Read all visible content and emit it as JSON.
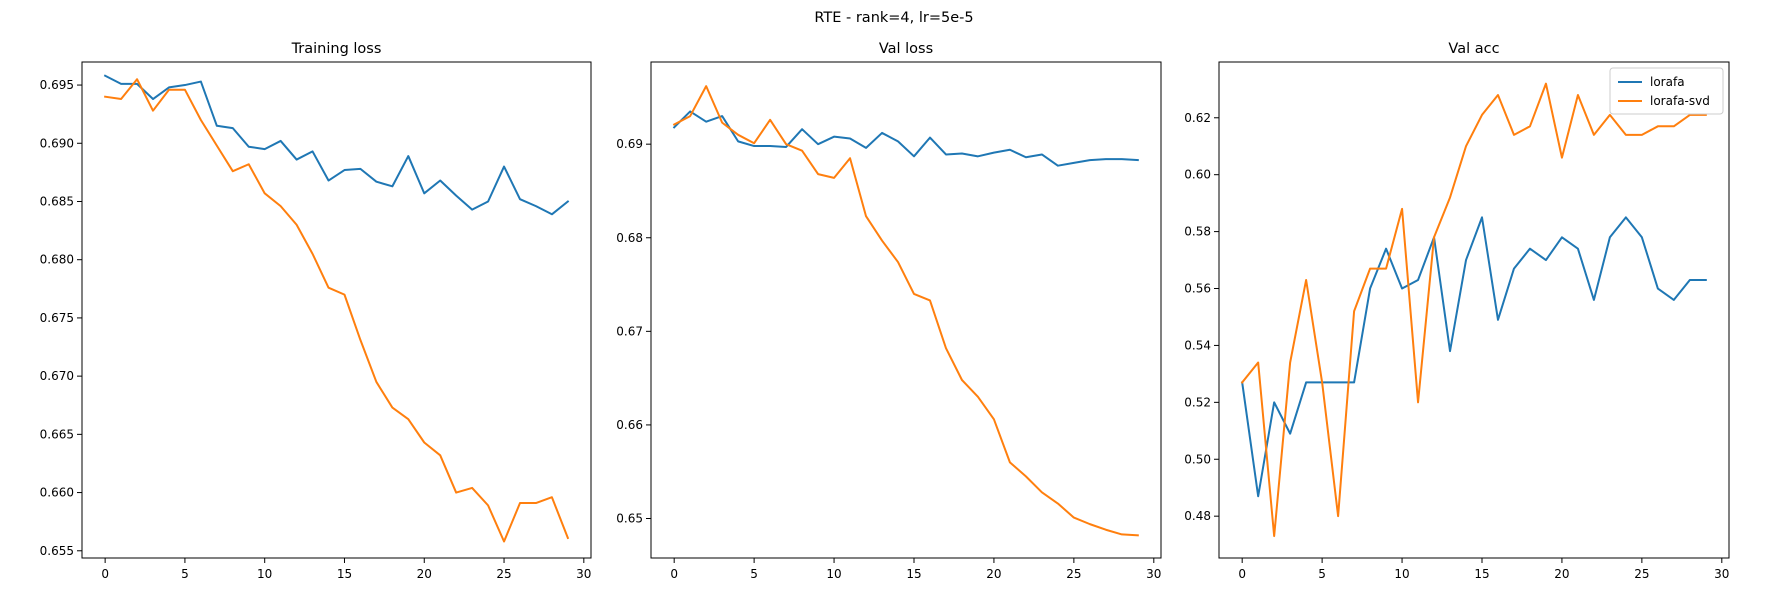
{
  "suptitle": "RTE - rank=4, lr=5e-5",
  "colors": {
    "lorafa": "#1f77b4",
    "lorafa-svd": "#ff7f0e"
  },
  "chart_data": [
    {
      "type": "line",
      "title": "Training loss",
      "xlabel": "",
      "ylabel": "",
      "xlim": [
        -1.45,
        30.45
      ],
      "ylim": [
        0.65438,
        0.69698
      ],
      "xticks": [
        0,
        5,
        10,
        15,
        20,
        25,
        30
      ],
      "xtick_labels": [
        "0",
        "5",
        "10",
        "15",
        "20",
        "25",
        "30"
      ],
      "yticks": [
        0.655,
        0.66,
        0.665,
        0.67,
        0.675,
        0.68,
        0.685,
        0.69,
        0.695
      ],
      "ytick_labels": [
        "0.655",
        "0.660",
        "0.665",
        "0.670",
        "0.675",
        "0.680",
        "0.685",
        "0.690",
        "0.695"
      ],
      "grid": false,
      "legend": null,
      "x": [
        0,
        1,
        2,
        3,
        4,
        5,
        6,
        7,
        8,
        9,
        10,
        11,
        12,
        13,
        14,
        15,
        16,
        17,
        18,
        19,
        20,
        21,
        22,
        23,
        24,
        25,
        26,
        27,
        28,
        29
      ],
      "series": [
        {
          "name": "lorafa",
          "values": [
            0.6958,
            0.6951,
            0.6951,
            0.6938,
            0.6948,
            0.695,
            0.6953,
            0.6915,
            0.6913,
            0.6897,
            0.6895,
            0.6902,
            0.6886,
            0.6893,
            0.6868,
            0.6877,
            0.6878,
            0.6867,
            0.6863,
            0.6889,
            0.6857,
            0.6868,
            0.6855,
            0.6843,
            0.685,
            0.688,
            0.6852,
            0.6846,
            0.6839,
            0.685
          ]
        },
        {
          "name": "lorafa-svd",
          "values": [
            0.694,
            0.6938,
            0.6955,
            0.6928,
            0.6946,
            0.6946,
            0.692,
            0.6898,
            0.6876,
            0.6882,
            0.6857,
            0.6846,
            0.683,
            0.6805,
            0.6776,
            0.677,
            0.6731,
            0.6695,
            0.6673,
            0.6663,
            0.6643,
            0.6632,
            0.66,
            0.6604,
            0.6589,
            0.6558,
            0.6591,
            0.6591,
            0.6596,
            0.6561
          ]
        }
      ]
    },
    {
      "type": "line",
      "title": "Val loss",
      "xlabel": "",
      "ylabel": "",
      "xlim": [
        -1.45,
        30.45
      ],
      "ylim": [
        0.64578,
        0.69878
      ],
      "xticks": [
        0,
        5,
        10,
        15,
        20,
        25,
        30
      ],
      "xtick_labels": [
        "0",
        "5",
        "10",
        "15",
        "20",
        "25",
        "30"
      ],
      "yticks": [
        0.65,
        0.66,
        0.67,
        0.68,
        0.69
      ],
      "ytick_labels": [
        "0.65",
        "0.66",
        "0.67",
        "0.68",
        "0.69"
      ],
      "grid": false,
      "legend": null,
      "x": [
        0,
        1,
        2,
        3,
        4,
        5,
        6,
        7,
        8,
        9,
        10,
        11,
        12,
        13,
        14,
        15,
        16,
        17,
        18,
        19,
        20,
        21,
        22,
        23,
        24,
        25,
        26,
        27,
        28,
        29
      ],
      "series": [
        {
          "name": "lorafa",
          "values": [
            0.6918,
            0.6935,
            0.6924,
            0.693,
            0.6903,
            0.6898,
            0.6898,
            0.6897,
            0.6916,
            0.69,
            0.6908,
            0.6906,
            0.6896,
            0.6912,
            0.6903,
            0.6887,
            0.6907,
            0.6889,
            0.689,
            0.6887,
            0.6891,
            0.6894,
            0.6886,
            0.6889,
            0.6877,
            0.688,
            0.6883,
            0.6884,
            0.6884,
            0.6883
          ]
        },
        {
          "name": "lorafa-svd",
          "values": [
            0.6921,
            0.693,
            0.6962,
            0.6923,
            0.691,
            0.6901,
            0.6926,
            0.69,
            0.6893,
            0.6868,
            0.6864,
            0.6885,
            0.6823,
            0.6797,
            0.6774,
            0.674,
            0.6733,
            0.6682,
            0.6648,
            0.663,
            0.6606,
            0.656,
            0.6545,
            0.6528,
            0.6516,
            0.6501,
            0.6494,
            0.6488,
            0.6483,
            0.6482
          ]
        }
      ]
    },
    {
      "type": "line",
      "title": "Val acc",
      "xlabel": "",
      "ylabel": "",
      "xlim": [
        -1.45,
        30.45
      ],
      "ylim": [
        0.4653,
        0.6396
      ],
      "xticks": [
        0,
        5,
        10,
        15,
        20,
        25,
        30
      ],
      "xtick_labels": [
        "0",
        "5",
        "10",
        "15",
        "20",
        "25",
        "30"
      ],
      "yticks": [
        0.48,
        0.5,
        0.52,
        0.54,
        0.56,
        0.58,
        0.6,
        0.62
      ],
      "ytick_labels": [
        "0.48",
        "0.50",
        "0.52",
        "0.54",
        "0.56",
        "0.58",
        "0.60",
        "0.62"
      ],
      "grid": false,
      "legend": "upper right",
      "x": [
        0,
        1,
        2,
        3,
        4,
        5,
        6,
        7,
        8,
        9,
        10,
        11,
        12,
        13,
        14,
        15,
        16,
        17,
        18,
        19,
        20,
        21,
        22,
        23,
        24,
        25,
        26,
        27,
        28,
        29
      ],
      "series": [
        {
          "name": "lorafa",
          "values": [
            0.527,
            0.487,
            0.52,
            0.509,
            0.527,
            0.527,
            0.527,
            0.527,
            0.56,
            0.574,
            0.56,
            0.563,
            0.578,
            0.538,
            0.57,
            0.585,
            0.549,
            0.567,
            0.574,
            0.57,
            0.578,
            0.574,
            0.556,
            0.578,
            0.585,
            0.578,
            0.56,
            0.556,
            0.563,
            0.563
          ]
        },
        {
          "name": "lorafa-svd",
          "values": [
            0.527,
            0.534,
            0.473,
            0.534,
            0.563,
            0.527,
            0.48,
            0.552,
            0.567,
            0.567,
            0.588,
            0.52,
            0.578,
            0.592,
            0.61,
            0.621,
            0.628,
            0.614,
            0.617,
            0.632,
            0.606,
            0.628,
            0.614,
            0.621,
            0.614,
            0.614,
            0.617,
            0.617,
            0.621,
            0.621
          ]
        }
      ]
    }
  ]
}
